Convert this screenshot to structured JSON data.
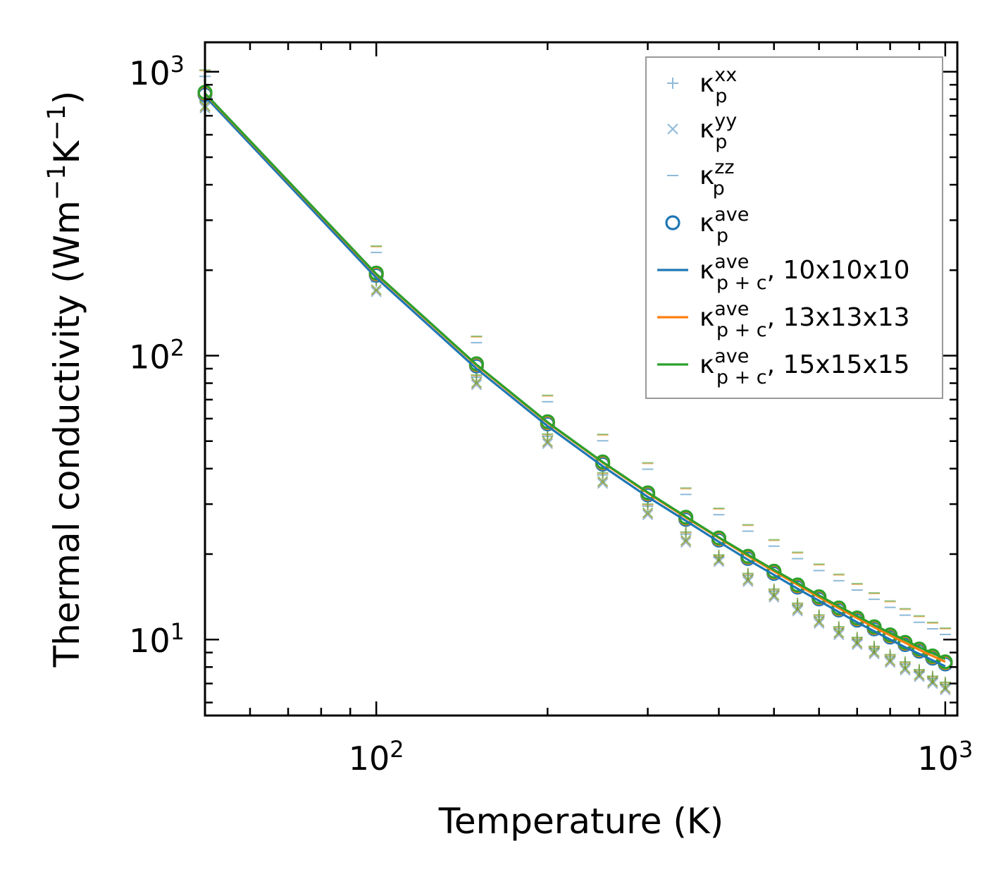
{
  "chart_data": {
    "type": "line",
    "xscale": "log",
    "yscale": "log",
    "xlabel": "Temperature (K)",
    "ylabel": {
      "prefix": "Thermal conductivity (Wm",
      "sup1": "−1",
      "mid": "K",
      "sup2": "−1",
      "suffix": ")"
    },
    "xlim": [
      50,
      1050
    ],
    "ylim": [
      5.4,
      1270
    ],
    "xticks": [
      {
        "value": 100,
        "base": "10",
        "exp": "2"
      },
      {
        "value": 1000,
        "base": "10",
        "exp": "3"
      }
    ],
    "yticks": [
      {
        "value": 10,
        "base": "10",
        "exp": "1"
      },
      {
        "value": 100,
        "base": "10",
        "exp": "2"
      },
      {
        "value": 1000,
        "base": "10",
        "exp": "3"
      }
    ],
    "x": [
      50,
      100,
      150,
      200,
      250,
      300,
      350,
      400,
      450,
      500,
      550,
      600,
      650,
      700,
      750,
      800,
      850,
      900,
      950,
      1000
    ],
    "colors": {
      "blue": "#1f77b4",
      "orange": "#ff7f0e",
      "green": "#2ca02c"
    },
    "series": [
      {
        "name": "kxx",
        "kind": "plus",
        "values": [
          780,
          182,
          84,
          52,
          38,
          29.5,
          23.5,
          19.5,
          16.8,
          14.8,
          13.2,
          12.0,
          10.9,
          10.0,
          9.3,
          8.7,
          8.2,
          7.7,
          7.3,
          6.95
        ]
      },
      {
        "name": "kyy",
        "kind": "cross",
        "values": [
          745,
          168,
          79,
          49,
          35.5,
          27.5,
          22.0,
          18.8,
          16.0,
          14.1,
          12.6,
          11.4,
          10.4,
          9.6,
          8.9,
          8.3,
          7.8,
          7.4,
          7.0,
          6.65
        ]
      },
      {
        "name": "kzz",
        "kind": "dash",
        "values": [
          980,
          235,
          113,
          70,
          51,
          40.5,
          33,
          28,
          24.5,
          21.7,
          19.6,
          17.8,
          16.4,
          15.2,
          14.1,
          13.2,
          12.4,
          11.7,
          11.1,
          10.6
        ]
      },
      {
        "name": "kave",
        "kind": "circle",
        "values": [
          832,
          192,
          92,
          57.5,
          41.5,
          32.3,
          26.5,
          22.4,
          19.3,
          17.1,
          15.3,
          13.9,
          12.7,
          11.7,
          10.9,
          10.2,
          9.6,
          9.1,
          8.6,
          8.2
        ]
      },
      {
        "name": "10x10x10",
        "kind": "line",
        "values": [
          820,
          188,
          90,
          56.5,
          40.8,
          31.8,
          26.2,
          22.1,
          19.1,
          16.9,
          15.1,
          13.7,
          12.5,
          11.5,
          10.7,
          10.0,
          9.4,
          8.9,
          8.45,
          8.05
        ]
      },
      {
        "name": "13x13x13",
        "kind": "line",
        "values": [
          836,
          193,
          92.5,
          58,
          42,
          32.8,
          26.9,
          22.8,
          19.7,
          17.4,
          15.6,
          14.1,
          12.9,
          11.9,
          11.05,
          10.35,
          9.75,
          9.2,
          8.75,
          8.35
        ]
      },
      {
        "name": "15x15x15",
        "kind": "line",
        "values": [
          840,
          194,
          93,
          58.3,
          42.2,
          33.0,
          27.1,
          22.9,
          19.9,
          17.6,
          15.8,
          14.3,
          13.1,
          12.1,
          11.25,
          10.55,
          9.95,
          9.4,
          8.95,
          8.55
        ]
      }
    ],
    "legend": {
      "position": "top-right",
      "entries": [
        {
          "kind": "plus",
          "color": "#1f77b4",
          "base": "κ",
          "sup": "xx",
          "sub": "p",
          "tail": ""
        },
        {
          "kind": "cross",
          "color": "#1f77b4",
          "base": "κ",
          "sup": "yy",
          "sub": "p",
          "tail": ""
        },
        {
          "kind": "dash",
          "color": "#1f77b4",
          "base": "κ",
          "sup": "zz",
          "sub": "p",
          "tail": ""
        },
        {
          "kind": "circle",
          "color": "#1f77b4",
          "base": "κ",
          "sup": "ave",
          "sub": "p",
          "tail": ""
        },
        {
          "kind": "line",
          "color": "#1f77b4",
          "base": "κ",
          "sup": "ave",
          "sub": "p + c",
          "tail": ", 10x10x10"
        },
        {
          "kind": "line",
          "color": "#ff7f0e",
          "base": "κ",
          "sup": "ave",
          "sub": "p + c",
          "tail": ", 13x13x13"
        },
        {
          "kind": "line",
          "color": "#2ca02c",
          "base": "κ",
          "sup": "ave",
          "sub": "p + c",
          "tail": ", 15x15x15"
        }
      ]
    }
  }
}
